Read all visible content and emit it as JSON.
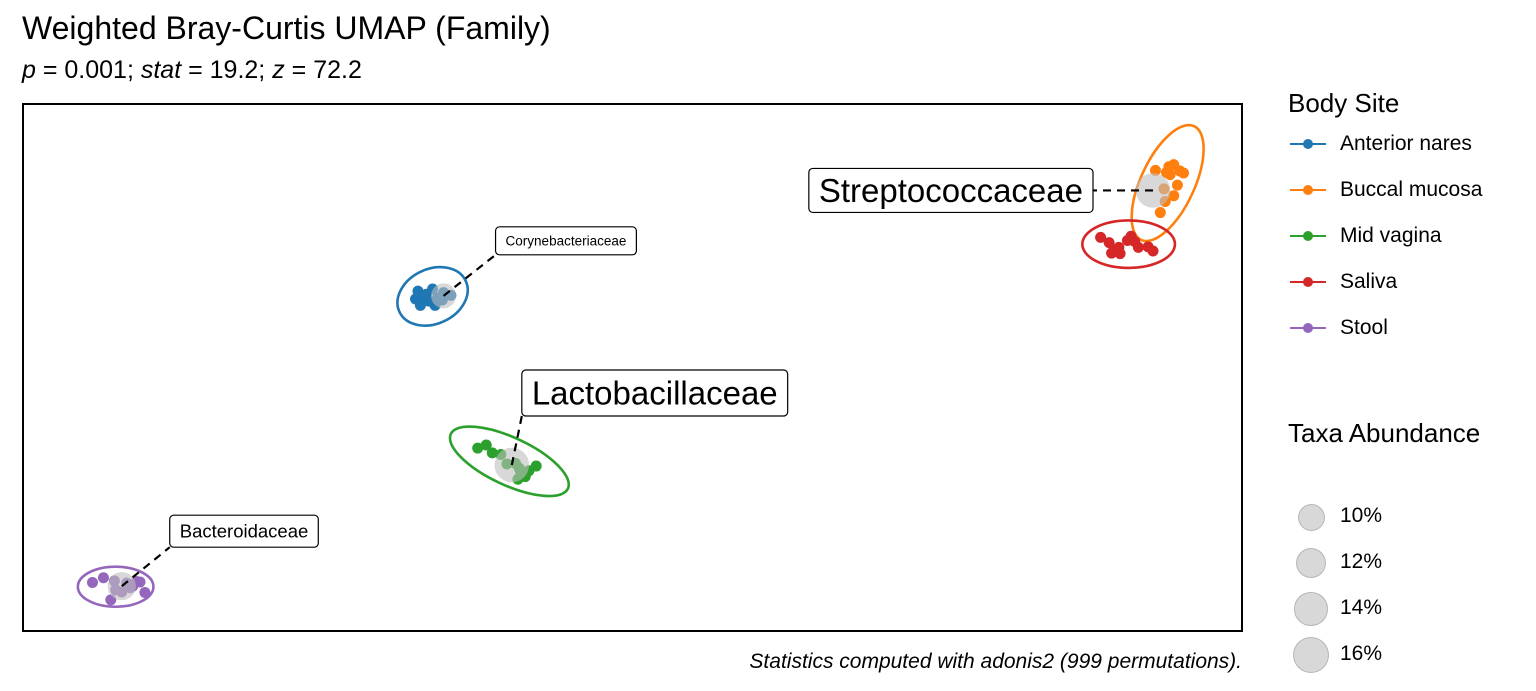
{
  "title": "Weighted Bray-Curtis UMAP (Family)",
  "subtitle": {
    "p_symbol": "p",
    "p_value": " = 0.001; ",
    "stat_symbol": "stat",
    "stat_value": " = 19.2; ",
    "z_symbol": "z",
    "z_value": " = 72.2"
  },
  "caption": "Statistics computed with adonis2 (999 permutations).",
  "legend": {
    "body_site_title": "Body Site",
    "body_sites": [
      {
        "label": "Anterior nares",
        "color": "#1f77b4"
      },
      {
        "label": "Buccal mucosa",
        "color": "#ff7f0e"
      },
      {
        "label": "Mid vagina",
        "color": "#2ca02c"
      },
      {
        "label": "Saliva",
        "color": "#d62728"
      },
      {
        "label": "Stool",
        "color": "#9467bd"
      }
    ],
    "abundance_title": "Taxa Abundance",
    "abundances": [
      {
        "label": "10%",
        "value": 10
      },
      {
        "label": "12%",
        "value": 12
      },
      {
        "label": "14%",
        "value": 14
      },
      {
        "label": "16%",
        "value": 16
      }
    ]
  },
  "chart_data": {
    "type": "scatter",
    "title": "Weighted Bray-Curtis UMAP (Family)",
    "subtitle": "p = 0.001; stat = 19.2; z = 72.2",
    "xlabel": "",
    "ylabel": "",
    "xlim": [
      0,
      100
    ],
    "ylim": [
      0,
      100
    ],
    "axes_visible": false,
    "grid": false,
    "legend_position": "right",
    "series": [
      {
        "name": "Anterior nares",
        "color": "#1f77b4",
        "points": [
          [
            32.4,
            64.5
          ],
          [
            32.9,
            63.3
          ],
          [
            33.6,
            64.9
          ],
          [
            34.0,
            63.2
          ],
          [
            33.8,
            61.8
          ],
          [
            33.3,
            62.6
          ],
          [
            34.5,
            64.2
          ],
          [
            33.1,
            63.9
          ],
          [
            32.2,
            63.0
          ],
          [
            35.1,
            63.7
          ],
          [
            32.6,
            61.8
          ],
          [
            34.4,
            62.8
          ]
        ],
        "ellipse": {
          "cx": 33.6,
          "cy": 63.5,
          "rx": 3.0,
          "ry": 5.2,
          "angle": -25
        }
      },
      {
        "name": "Buccal mucosa",
        "color": "#ff7f0e",
        "points": [
          [
            93.3,
            79.4
          ],
          [
            93.8,
            87.0
          ],
          [
            94.0,
            88.1
          ],
          [
            94.4,
            88.5
          ],
          [
            94.9,
            87.3
          ],
          [
            94.1,
            86.6
          ],
          [
            95.2,
            86.9
          ],
          [
            92.9,
            87.4
          ],
          [
            93.6,
            83.9
          ],
          [
            94.7,
            84.6
          ],
          [
            94.4,
            82.6
          ],
          [
            93.7,
            81.5
          ]
        ],
        "ellipse": {
          "cx": 93.9,
          "cy": 85.0,
          "rx": 2.2,
          "ry": 11.9,
          "angle": 25
        }
      },
      {
        "name": "Mid vagina",
        "color": "#2ca02c",
        "points": [
          [
            37.3,
            34.7
          ],
          [
            38.0,
            35.3
          ],
          [
            38.5,
            33.8
          ],
          [
            39.7,
            31.7
          ],
          [
            40.4,
            31.8
          ],
          [
            40.7,
            30.9
          ],
          [
            41.2,
            29.3
          ],
          [
            40.6,
            28.8
          ],
          [
            41.5,
            30.4
          ],
          [
            39.2,
            33.5
          ],
          [
            42.1,
            31.3
          ],
          [
            40.8,
            30.4
          ]
        ],
        "ellipse": {
          "cx": 39.9,
          "cy": 32.2,
          "rx": 5.3,
          "ry": 4.5,
          "angle": 25
        }
      },
      {
        "name": "Saliva",
        "color": "#d62728",
        "points": [
          [
            88.4,
            74.7
          ],
          [
            89.1,
            73.7
          ],
          [
            89.5,
            72.3
          ],
          [
            89.9,
            72.8
          ],
          [
            90.0,
            71.6
          ],
          [
            90.6,
            74.1
          ],
          [
            90.9,
            74.9
          ],
          [
            91.2,
            73.9
          ],
          [
            91.5,
            72.8
          ],
          [
            92.3,
            72.9
          ],
          [
            92.7,
            72.1
          ],
          [
            89.3,
            71.7
          ]
        ],
        "ellipse": {
          "cx": 90.7,
          "cy": 73.4,
          "rx": 3.8,
          "ry": 4.5,
          "angle": 0
        }
      },
      {
        "name": "Stool",
        "color": "#9467bd",
        "points": [
          [
            5.7,
            9.2
          ],
          [
            6.6,
            10.1
          ],
          [
            7.5,
            9.5
          ],
          [
            8.5,
            9.1
          ],
          [
            9.0,
            8.5
          ],
          [
            9.6,
            9.3
          ],
          [
            10.0,
            7.3
          ],
          [
            8.1,
            7.4
          ],
          [
            7.6,
            7.8
          ],
          [
            7.2,
            5.9
          ],
          [
            9.3,
            9.4
          ],
          [
            8.8,
            8.2
          ]
        ],
        "ellipse": {
          "cx": 7.6,
          "cy": 8.4,
          "rx": 3.1,
          "ry": 3.8,
          "angle": 0
        }
      }
    ],
    "taxa": [
      {
        "label": "Corynebacteriaceae",
        "x": 34.5,
        "y": 63.6,
        "abundance": 10
      },
      {
        "label": "Streptococcaceae",
        "x": 92.7,
        "y": 83.6,
        "abundance": 16
      },
      {
        "label": "Lactobacillaceae",
        "x": 40.1,
        "y": 31.5,
        "abundance": 16
      },
      {
        "label": "Bacteroidaceae",
        "x": 8.1,
        "y": 8.5,
        "abundance": 12
      }
    ]
  }
}
